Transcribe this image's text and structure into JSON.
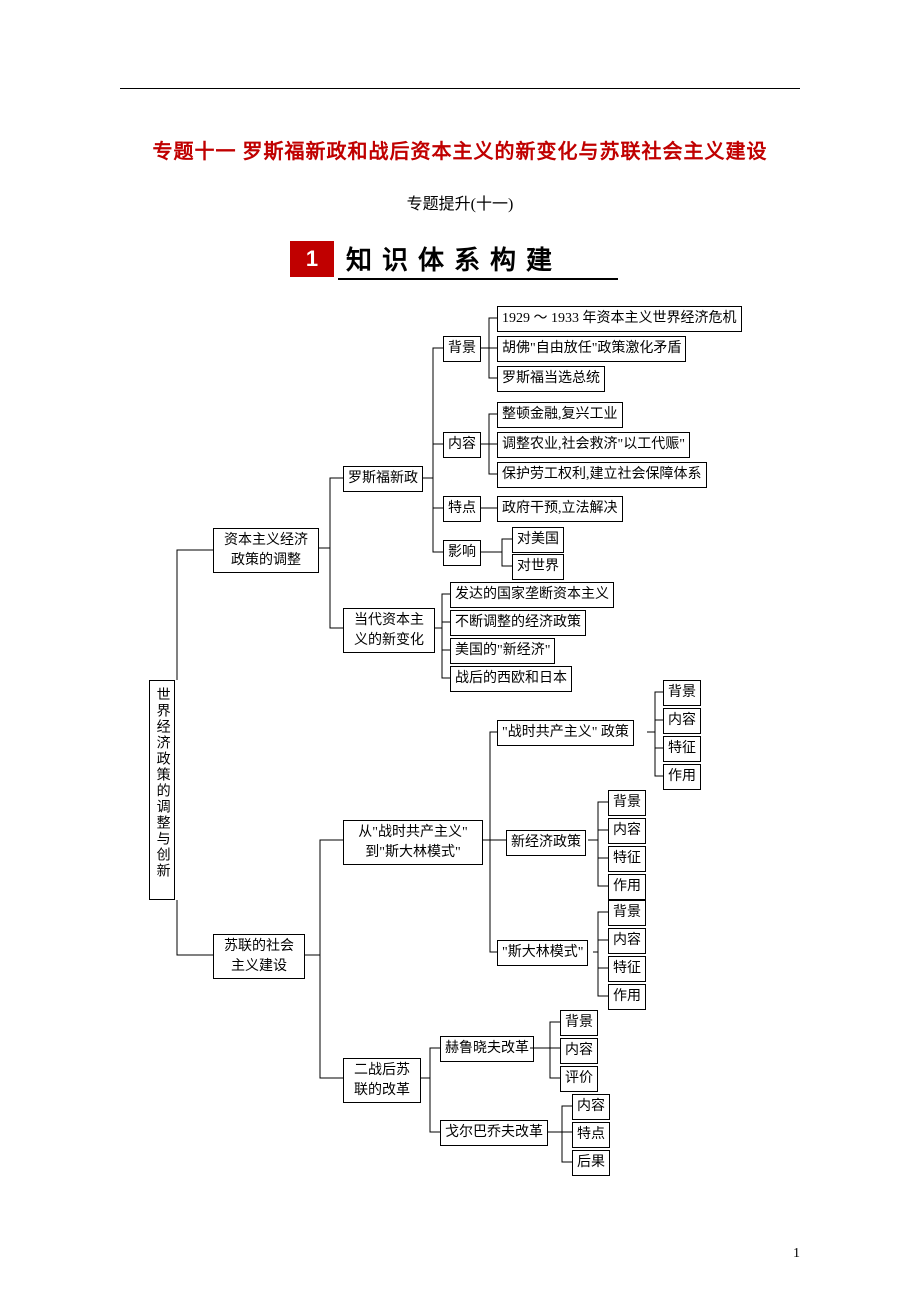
{
  "page": {
    "title": "专题十一 罗斯福新政和战后资本主义的新变化与苏联社会主义建设",
    "subtitle": "专题提升(十一)",
    "section_num": "1",
    "section_label": "知识体系构建",
    "page_number": "1"
  },
  "nodes": {
    "root": "世界经济政策的调整与创新",
    "cap_adj": "资本主义经济\n政策的调整",
    "ussr": "苏联的社会\n主义建设",
    "roosevelt": "罗斯福新政",
    "contemp": "当代资本主\n义的新变化",
    "bg": "背景",
    "content": "内容",
    "feature": "特点",
    "impact": "影响",
    "char": "特征",
    "effect": "作用",
    "eval": "评价",
    "result": "后果",
    "bg_items": [
      "1929 ～ 1933 年资本主义世界经济危机",
      "胡佛\"自由放任\"政策激化矛盾",
      "罗斯福当选总统"
    ],
    "content_items": [
      "整顿金融,复兴工业",
      "调整农业,社会救济\"以工代赈\"",
      "保护劳工权利,建立社会保障体系"
    ],
    "feature_item": "政府干预,立法解决",
    "impact_items": [
      "对美国",
      "对世界"
    ],
    "contemp_items": [
      "发达的国家垄断资本主义",
      "不断调整的经济政策",
      "美国的\"新经济\"",
      "战后的西欧和日本"
    ],
    "from_to": "从\"战时共产主义\"\n到\"斯大林模式\"",
    "postwar": "二战后苏\n联的改革",
    "war_comm": "\"战时共产主义\" 政策",
    "nep": "新经济政策",
    "stalin": "\"斯大林模式\"",
    "khr": "赫鲁晓夫改革",
    "gorb": "戈尔巴乔夫改革"
  },
  "style": {
    "title_color": "#c00000",
    "banner_bg": "#c00000",
    "text_color": "#000000",
    "border_color": "#000000",
    "font_size_node": 14,
    "font_size_title": 20
  }
}
